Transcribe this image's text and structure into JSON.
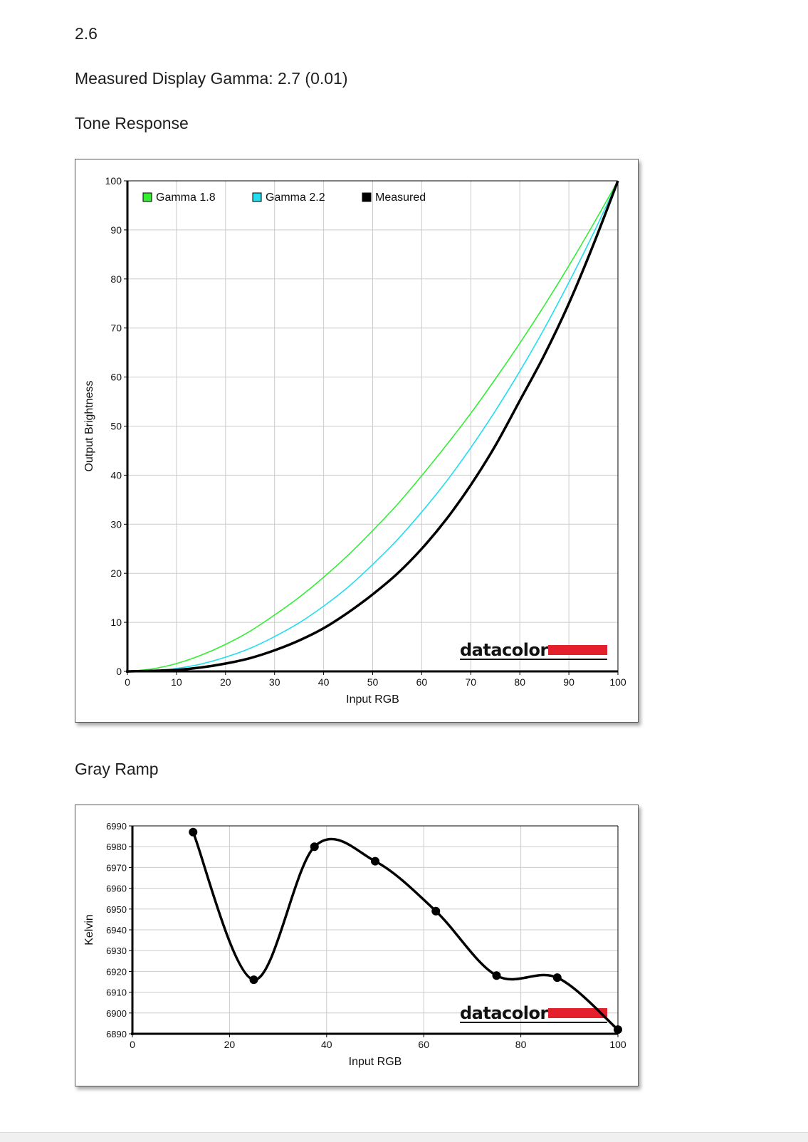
{
  "header": {
    "value": "2.6",
    "measured_gamma": "Measured Display Gamma: 2.7 (0.01)",
    "tone_title": "Tone Response",
    "gray_title": "Gray Ramp"
  },
  "logo_text": "datacolor",
  "colors": {
    "gamma18": "#33ee33",
    "gamma22": "#22ddee",
    "measured": "#000000",
    "grid": "#cccccc",
    "logo_red": "#e3202b"
  },
  "chart_data": [
    {
      "type": "line",
      "xlabel": "Input RGB",
      "ylabel": "Output Brightness",
      "xlim": [
        0,
        100
      ],
      "ylim": [
        0,
        100
      ],
      "xticks": [
        0,
        10,
        20,
        30,
        40,
        50,
        60,
        70,
        80,
        90,
        100
      ],
      "yticks": [
        0,
        10,
        20,
        30,
        40,
        50,
        60,
        70,
        80,
        90,
        100
      ],
      "grid": true,
      "legend_position": "top-left",
      "x": [
        0,
        5,
        10,
        15,
        20,
        25,
        30,
        35,
        40,
        45,
        50,
        55,
        60,
        65,
        70,
        75,
        80,
        85,
        90,
        95,
        100
      ],
      "series": [
        {
          "name": "Gamma 1.8",
          "color": "#33ee33",
          "values": [
            0,
            0.5,
            1.6,
            3.3,
            5.5,
            8.2,
            11.5,
            15.1,
            19.2,
            23.7,
            28.7,
            34.0,
            39.9,
            46.1,
            52.6,
            59.6,
            66.9,
            74.6,
            82.7,
            91.2,
            100
          ]
        },
        {
          "name": "Gamma 2.2",
          "color": "#22ddee",
          "values": [
            0,
            0.1,
            0.6,
            1.5,
            2.9,
            4.7,
            7.1,
            9.9,
            13.3,
            17.2,
            21.8,
            26.8,
            32.5,
            38.7,
            45.6,
            53.1,
            61.2,
            69.9,
            79.3,
            89.3,
            100
          ]
        },
        {
          "name": "Measured",
          "color": "#000000",
          "values": [
            0,
            0.1,
            0.3,
            0.8,
            1.6,
            2.7,
            4.3,
            6.3,
            8.8,
            12.0,
            15.7,
            19.9,
            25.0,
            31.0,
            38.0,
            46.0,
            55.2,
            64.5,
            75.0,
            87.0,
            100
          ]
        }
      ]
    },
    {
      "type": "line",
      "xlabel": "Input RGB",
      "ylabel": "Kelvin",
      "xlim": [
        0,
        100
      ],
      "ylim": [
        6890,
        6990
      ],
      "xticks": [
        0,
        20,
        40,
        60,
        80,
        100
      ],
      "yticks": [
        6890,
        6900,
        6910,
        6920,
        6930,
        6940,
        6950,
        6960,
        6970,
        6980,
        6990
      ],
      "grid": true,
      "x": [
        12.5,
        25,
        37.5,
        50,
        62.5,
        75,
        87.5,
        100
      ],
      "series": [
        {
          "name": "",
          "color": "#000000",
          "values": [
            6987,
            6916,
            6980,
            6973,
            6949,
            6918,
            6917,
            6892
          ]
        }
      ]
    }
  ]
}
